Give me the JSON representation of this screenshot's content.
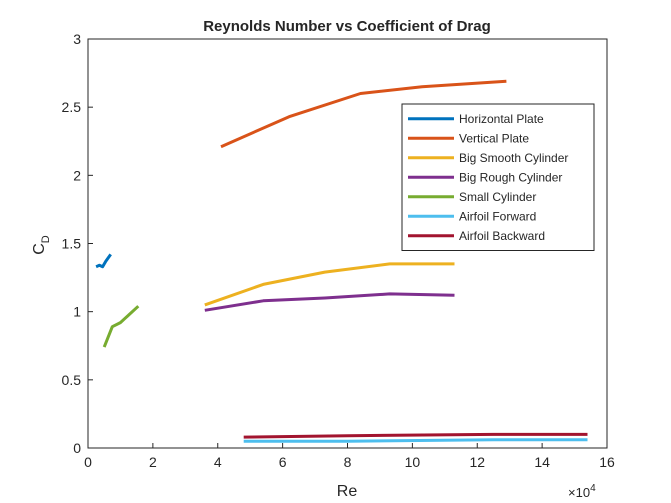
{
  "chart_data": {
    "type": "line",
    "title": "Reynolds Number vs Coefficient of Drag",
    "xlabel": "Re",
    "ylabel": {
      "main": "C",
      "sub": "D"
    },
    "x_multiplier": {
      "base": "10",
      "exponent": "4",
      "prefix": "×"
    },
    "xlim": [
      0,
      160000
    ],
    "ylim": [
      0,
      3
    ],
    "xticks": [
      0,
      20000,
      40000,
      60000,
      80000,
      100000,
      120000,
      140000,
      160000
    ],
    "xtick_labels": [
      "0",
      "2",
      "4",
      "6",
      "8",
      "10",
      "12",
      "14",
      "16"
    ],
    "yticks": [
      0,
      0.5,
      1,
      1.5,
      2,
      2.5,
      3
    ],
    "ytick_labels": [
      "0",
      "0.5",
      "1",
      "1.5",
      "2",
      "2.5",
      "3"
    ],
    "grid": false,
    "legend_position": "top-right",
    "series": [
      {
        "name": "Horizontal Plate",
        "color": "#0072BD",
        "x": [
          2500,
          3500,
          4500,
          5500,
          7000
        ],
        "y": [
          1.33,
          1.34,
          1.33,
          1.37,
          1.42
        ]
      },
      {
        "name": "Vertical Plate",
        "color": "#D95319",
        "x": [
          41000,
          62000,
          84000,
          103000,
          129000
        ],
        "y": [
          2.21,
          2.43,
          2.6,
          2.65,
          2.69
        ]
      },
      {
        "name": "Big Smooth Cylinder",
        "color": "#EDB120",
        "x": [
          36000,
          54000,
          73000,
          93000,
          113000
        ],
        "y": [
          1.05,
          1.2,
          1.29,
          1.35,
          1.35
        ]
      },
      {
        "name": "Big Rough Cylinder",
        "color": "#7E2F8E",
        "x": [
          36000,
          54000,
          73000,
          93000,
          113000
        ],
        "y": [
          1.01,
          1.08,
          1.1,
          1.13,
          1.12
        ]
      },
      {
        "name": "Small Cylinder",
        "color": "#77AC30",
        "x": [
          5000,
          7500,
          10000,
          15500
        ],
        "y": [
          0.74,
          0.89,
          0.92,
          1.04
        ]
      },
      {
        "name": "Airfoil Forward",
        "color": "#4DBEEE",
        "x": [
          48000,
          80000,
          125000,
          154000
        ],
        "y": [
          0.05,
          0.05,
          0.06,
          0.06
        ]
      },
      {
        "name": "Airfoil Backward",
        "color": "#A2142F",
        "x": [
          48000,
          80000,
          125000,
          154000
        ],
        "y": [
          0.08,
          0.09,
          0.1,
          0.1
        ]
      }
    ]
  }
}
